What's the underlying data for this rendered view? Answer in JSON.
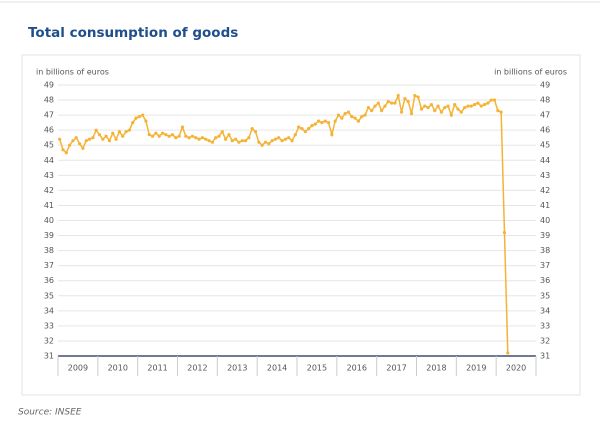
{
  "chart_data": {
    "type": "line",
    "title": "Total consumption of goods",
    "y_label": "in billions of euros",
    "y2_label": "in billions of euros",
    "source": "Source: INSEE",
    "categories": [
      "2009",
      null,
      null,
      null,
      null,
      null,
      null,
      null,
      null,
      null,
      null,
      null,
      "2010",
      null,
      null,
      null,
      null,
      null,
      null,
      null,
      null,
      null,
      null,
      null,
      "2011",
      null,
      null,
      null,
      null,
      null,
      null,
      null,
      null,
      null,
      null,
      null,
      "2012",
      null,
      null,
      null,
      null,
      null,
      null,
      null,
      null,
      null,
      null,
      null,
      "2013",
      null,
      null,
      null,
      null,
      null,
      null,
      null,
      null,
      null,
      null,
      null,
      "2014",
      null,
      null,
      null,
      null,
      null,
      null,
      null,
      null,
      null,
      null,
      null,
      "2015",
      null,
      null,
      null,
      null,
      null,
      null,
      null,
      null,
      null,
      null,
      null,
      "2016",
      null,
      null,
      null,
      null,
      null,
      null,
      null,
      null,
      null,
      null,
      null,
      "2017",
      null,
      null,
      null,
      null,
      null,
      null,
      null,
      null,
      null,
      null,
      null,
      "2018",
      null,
      null,
      null,
      null,
      null,
      null,
      null,
      null,
      null,
      null,
      null,
      "2019",
      null,
      null,
      null,
      null,
      null,
      null,
      null,
      null,
      null,
      null,
      null,
      "2020",
      null,
      null,
      null
    ],
    "series": [
      {
        "name": "Total consumption of goods",
        "color": "#f5b335",
        "values": [
          45.4,
          44.7,
          44.5,
          45.0,
          45.3,
          45.5,
          45.1,
          44.8,
          45.3,
          45.4,
          45.5,
          46.0,
          45.7,
          45.4,
          45.6,
          45.3,
          45.8,
          45.4,
          45.9,
          45.6,
          45.9,
          46.0,
          46.5,
          46.8,
          46.9,
          47.0,
          46.6,
          45.7,
          45.6,
          45.8,
          45.6,
          45.8,
          45.7,
          45.6,
          45.7,
          45.5,
          45.6,
          46.2,
          45.6,
          45.5,
          45.6,
          45.5,
          45.4,
          45.5,
          45.4,
          45.3,
          45.2,
          45.5,
          45.6,
          45.9,
          45.4,
          45.7,
          45.3,
          45.4,
          45.2,
          45.3,
          45.3,
          45.5,
          46.1,
          45.9,
          45.2,
          45.0,
          45.2,
          45.1,
          45.3,
          45.4,
          45.5,
          45.3,
          45.4,
          45.5,
          45.3,
          45.7,
          46.2,
          46.1,
          45.9,
          46.1,
          46.3,
          46.4,
          46.6,
          46.5,
          46.6,
          46.5,
          45.7,
          46.6,
          47.0,
          46.8,
          47.1,
          47.2,
          46.9,
          46.8,
          46.6,
          46.9,
          47.0,
          47.5,
          47.3,
          47.6,
          47.8,
          47.3,
          47.6,
          47.9,
          47.8,
          47.8,
          48.3,
          47.2,
          48.1,
          47.9,
          47.1,
          48.3,
          48.2,
          47.4,
          47.6,
          47.5,
          47.7,
          47.3,
          47.6,
          47.2,
          47.5,
          47.6,
          47.0,
          47.7,
          47.4,
          47.2,
          47.5,
          47.6,
          47.6,
          47.7,
          47.8,
          47.6,
          47.7,
          47.8,
          48.0,
          48.0,
          47.3,
          47.2,
          39.2,
          31.2
        ]
      }
    ],
    "ylim": [
      31,
      49
    ],
    "yticks": [
      31,
      32,
      33,
      34,
      35,
      36,
      37,
      38,
      39,
      40,
      41,
      42,
      43,
      44,
      45,
      46,
      47,
      48,
      49
    ],
    "y2lim": [
      31,
      49
    ],
    "y2ticks": [
      31,
      32,
      33,
      34,
      35,
      36,
      37,
      38,
      39,
      40,
      41,
      42,
      43,
      44,
      45,
      46,
      47,
      48,
      49
    ],
    "grid": true
  }
}
